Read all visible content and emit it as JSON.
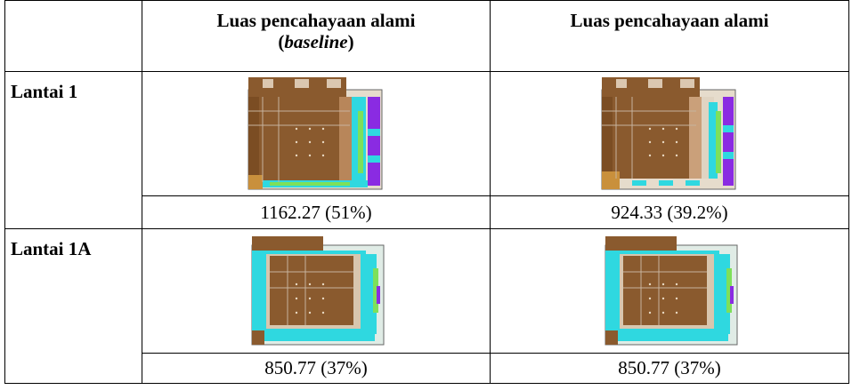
{
  "table": {
    "headers": {
      "col1_line1": "Luas pencahayaan alami",
      "col1_line2": "baseline",
      "col2": "Luas pencahayaan alami"
    },
    "rows": [
      {
        "floor": "Lantai 1",
        "baseline_area": "1162.27 (51%)",
        "area": "924.33 (39.2%)"
      },
      {
        "floor": "Lantai 1A",
        "baseline_area": "850.77 (37%)",
        "area": "850.77 (37%)"
      }
    ]
  },
  "colors": {
    "lit_area": "#8a5a2e",
    "transition": "#e8e0d0",
    "cyan": "#2fd8e0",
    "green": "#7ee05a",
    "purple": "#8a2be2"
  }
}
